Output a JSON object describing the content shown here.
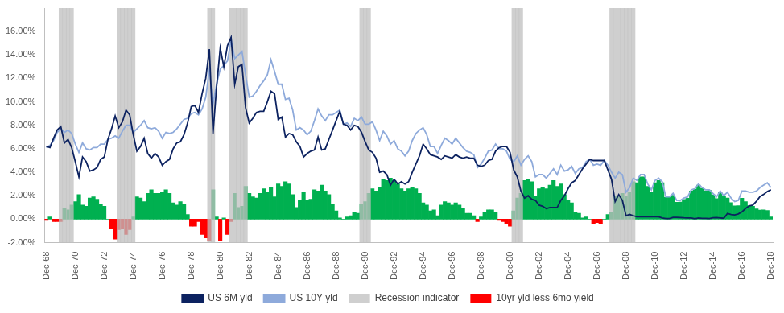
{
  "chart_data": {
    "type": "bar",
    "categories": [
      "Dec-68",
      null,
      null,
      null,
      null,
      null,
      null,
      null,
      "Dec-70",
      null,
      null,
      null,
      null,
      null,
      null,
      null,
      "Dec-72",
      null,
      null,
      null,
      null,
      null,
      null,
      null,
      "Dec-74",
      null,
      null,
      null,
      null,
      null,
      null,
      null,
      "Dec-76",
      null,
      null,
      null,
      null,
      null,
      null,
      null,
      "Dec-78",
      null,
      null,
      null,
      null,
      null,
      null,
      null,
      "Dec-80",
      null,
      null,
      null,
      null,
      null,
      null,
      null,
      "Dec-82",
      null,
      null,
      null,
      null,
      null,
      null,
      null,
      "Dec-84",
      null,
      null,
      null,
      null,
      null,
      null,
      null,
      "Dec-86",
      null,
      null,
      null,
      null,
      null,
      null,
      null,
      "Dec-88",
      null,
      null,
      null,
      null,
      null,
      null,
      null,
      "Dec-90",
      null,
      null,
      null,
      null,
      null,
      null,
      null,
      "Dec-92",
      null,
      null,
      null,
      null,
      null,
      null,
      null,
      "Dec-94",
      null,
      null,
      null,
      null,
      null,
      null,
      null,
      "Dec-96",
      null,
      null,
      null,
      null,
      null,
      null,
      null,
      "Dec-98",
      null,
      null,
      null,
      null,
      null,
      null,
      null,
      "Dec-00",
      null,
      null,
      null,
      null,
      null,
      null,
      null,
      "Dec-02",
      null,
      null,
      null,
      null,
      null,
      null,
      null,
      "Dec-04",
      null,
      null,
      null,
      null,
      null,
      null,
      null,
      "Dec-06",
      null,
      null,
      null,
      null,
      null,
      null,
      null,
      "Dec-08",
      null,
      null,
      null,
      null,
      null,
      null,
      null,
      "Dec-10",
      null,
      null,
      null,
      null,
      null,
      null,
      null,
      "Dec-12",
      null,
      null,
      null,
      null,
      null,
      null,
      null,
      "Dec-14",
      null,
      null,
      null,
      null,
      null,
      null,
      null,
      "Dec-16",
      null,
      null,
      null,
      null,
      null,
      null,
      null,
      "Dec-18"
    ],
    "series": [
      {
        "name": "10yr yld less 6mo yield",
        "type": "bar",
        "color": "#00b050",
        "values": [
          -0.1,
          0.2,
          -0.2,
          -0.2,
          -0.2,
          0.9,
          0.8,
          1.2,
          1.5,
          2.1,
          1.2,
          1.1,
          1.8,
          1.9,
          1.7,
          1.3,
          1.1,
          0.0,
          -0.8,
          -1.7,
          -0.9,
          -0.8,
          -1.3,
          -0.9,
          0.2,
          1.9,
          1.8,
          1.5,
          2.2,
          2.5,
          2.2,
          2.2,
          2.3,
          2.5,
          2.2,
          1.4,
          1.2,
          1.5,
          1.3,
          0.4,
          -0.6,
          -0.6,
          -0.2,
          -1.3,
          -1.6,
          -1.8,
          2.5,
          0.2,
          -1.8,
          0.1,
          -1.3,
          -0.2,
          2.2,
          1.0,
          1.1,
          2.8,
          2.2,
          1.9,
          1.8,
          2.2,
          2.6,
          2.3,
          2.7,
          1.9,
          3.0,
          2.8,
          3.2,
          3.0,
          2.1,
          1.0,
          1.6,
          2.3,
          1.6,
          1.7,
          2.5,
          2.4,
          2.9,
          2.4,
          2.1,
          1.3,
          0.7,
          0.1,
          0.0,
          0.2,
          0.3,
          0.6,
          0.5,
          1.3,
          1.5,
          2.2,
          2.6,
          2.4,
          2.7,
          3.4,
          3.3,
          3.5,
          3.3,
          3.0,
          2.6,
          2.4,
          2.6,
          2.7,
          2.6,
          2.2,
          1.4,
          1.2,
          0.7,
          0.8,
          0.3,
          1.2,
          1.5,
          1.4,
          1.2,
          1.4,
          1.2,
          0.9,
          0.5,
          0.5,
          0.3,
          -0.2,
          0.2,
          0.6,
          0.8,
          0.8,
          0.6,
          -0.1,
          -0.2,
          -0.4,
          -0.6,
          0.7,
          1.8,
          2.2,
          3.3,
          3.4,
          3.2,
          2.0,
          2.6,
          2.7,
          2.6,
          2.9,
          3.3,
          2.8,
          3.0,
          2.1,
          1.6,
          1.4,
          0.6,
          0.5,
          0.1,
          0.2,
          0.0,
          -0.4,
          -0.3,
          -0.4,
          0.0,
          0.4,
          0.6,
          2.0,
          1.9,
          2.2,
          2.0,
          2.3,
          3.2,
          3.1,
          3.6,
          3.6,
          2.8,
          2.3,
          3.1,
          3.3,
          3.1,
          1.85,
          1.85,
          2.05,
          1.45,
          1.46,
          1.68,
          1.79,
          2.4,
          2.56,
          2.9,
          2.63,
          2.43,
          2.45,
          2.08,
          1.76,
          2.29,
          1.92,
          1.81,
          1.41,
          1.14,
          1.15,
          1.78,
          1.49,
          1.16,
          1.1,
          0.87,
          0.77,
          0.79,
          0.74,
          0.2
        ]
      },
      {
        "name": "Recession indicator",
        "type": "bar",
        "color": "#bfbfbf",
        "values": [
          null,
          null,
          null,
          null,
          [
            -2,
            18
          ],
          [
            -2,
            18
          ],
          [
            -2,
            18
          ],
          [
            -2,
            18
          ],
          null,
          null,
          null,
          null,
          null,
          null,
          null,
          null,
          null,
          null,
          null,
          null,
          [
            -2,
            18
          ],
          [
            -2,
            18
          ],
          [
            -2,
            18
          ],
          [
            -2,
            18
          ],
          [
            -2,
            18
          ],
          null,
          null,
          null,
          null,
          null,
          null,
          null,
          null,
          null,
          null,
          null,
          null,
          null,
          null,
          null,
          null,
          null,
          null,
          null,
          null,
          [
            -2,
            18
          ],
          [
            -2,
            18
          ],
          null,
          null,
          null,
          null,
          [
            -2,
            18
          ],
          [
            -2,
            18
          ],
          [
            -2,
            18
          ],
          [
            -2,
            18
          ],
          [
            -2,
            18
          ],
          null,
          null,
          null,
          null,
          null,
          null,
          null,
          null,
          null,
          null,
          null,
          null,
          null,
          null,
          null,
          null,
          null,
          null,
          null,
          null,
          null,
          null,
          null,
          null,
          null,
          null,
          null,
          null,
          null,
          null,
          null,
          [
            -2,
            18
          ],
          [
            -2,
            18
          ],
          [
            -2,
            18
          ],
          null,
          null,
          null,
          null,
          null,
          null,
          null,
          null,
          null,
          null,
          null,
          null,
          null,
          null,
          null,
          null,
          null,
          null,
          null,
          null,
          null,
          null,
          null,
          null,
          null,
          null,
          null,
          null,
          null,
          null,
          null,
          null,
          null,
          null,
          null,
          null,
          null,
          null,
          null,
          [
            -2,
            18
          ],
          [
            -2,
            18
          ],
          [
            -2,
            18
          ],
          null,
          null,
          null,
          null,
          null,
          null,
          null,
          null,
          null,
          null,
          null,
          null,
          null,
          null,
          null,
          null,
          null,
          null,
          null,
          null,
          null,
          null,
          null,
          null,
          [
            -2,
            18
          ],
          [
            -2,
            18
          ],
          [
            -2,
            18
          ],
          [
            -2,
            18
          ],
          [
            -2,
            18
          ],
          [
            -2,
            18
          ],
          [
            -2,
            18
          ],
          null,
          null,
          null,
          null,
          null,
          null,
          null,
          null,
          null,
          null,
          null,
          null,
          null,
          null,
          null,
          null,
          null,
          null,
          null,
          null,
          null,
          null,
          null,
          null,
          null,
          null,
          null,
          null,
          null,
          null,
          null,
          null,
          null,
          null,
          null,
          null,
          null,
          null
        ]
      },
      {
        "name": "US 6M yld",
        "type": "line",
        "color": "#0c2260",
        "values": [
          6.2,
          6.1,
          6.9,
          7.6,
          7.9,
          6.5,
          6.8,
          6.1,
          4.9,
          3.6,
          5.3,
          4.9,
          4.1,
          4.2,
          4.4,
          5.1,
          5.3,
          6.8,
          7.7,
          8.8,
          7.8,
          8.3,
          9.3,
          8.9,
          7.2,
          5.8,
          6.2,
          6.9,
          5.6,
          5.2,
          5.6,
          5.3,
          4.6,
          4.9,
          5.1,
          6.0,
          6.5,
          6.6,
          7.2,
          8.2,
          9.6,
          9.7,
          9.1,
          10.7,
          12.0,
          14.5,
          7.3,
          11.3,
          14.6,
          13.0,
          14.8,
          15.5,
          11.5,
          13.0,
          13.2,
          9.5,
          8.2,
          8.6,
          9.1,
          9.2,
          9.2,
          10.0,
          10.9,
          10.7,
          8.5,
          8.7,
          7.0,
          7.3,
          7.2,
          6.6,
          6.2,
          5.3,
          5.6,
          5.8,
          5.9,
          7.0,
          5.9,
          6.0,
          6.8,
          7.6,
          8.4,
          9.2,
          8.1,
          8.0,
          7.6,
          8.0,
          7.9,
          7.4,
          6.6,
          5.9,
          5.7,
          5.2,
          4.0,
          4.1,
          3.8,
          2.9,
          3.4,
          3.0,
          3.2,
          3.0,
          3.2,
          4.0,
          4.7,
          5.4,
          6.4,
          6.0,
          5.5,
          5.4,
          5.3,
          5.1,
          5.4,
          5.3,
          5.2,
          5.5,
          5.3,
          5.2,
          5.3,
          5.2,
          5.2,
          4.6,
          4.5,
          4.6,
          5.0,
          5.1,
          5.8,
          6.1,
          6.2,
          6.2,
          5.7,
          4.2,
          3.6,
          2.4,
          1.8,
          2.0,
          1.7,
          1.6,
          1.2,
          1.1,
          0.9,
          1.0,
          1.0,
          1.0,
          1.6,
          2.0,
          2.6,
          3.1,
          3.3,
          3.8,
          4.3,
          4.7,
          5.1,
          5.0,
          5.0,
          5.0,
          5.0,
          4.2,
          3.4,
          1.5,
          2.1,
          1.6,
          0.3,
          0.4,
          0.3,
          0.2,
          0.2,
          0.2,
          0.2,
          0.2,
          0.2,
          0.2,
          0.1,
          0.05,
          0.05,
          0.15,
          0.15,
          0.14,
          0.12,
          0.11,
          0.1,
          0.04,
          0.1,
          0.07,
          0.07,
          0.05,
          0.12,
          0.14,
          0.11,
          0.08,
          0.49,
          0.39,
          0.36,
          0.45,
          0.62,
          0.91,
          1.14,
          1.2,
          1.53,
          1.93,
          2.11,
          2.36,
          2.5
        ]
      },
      {
        "name": "US 10Y yld",
        "type": "line",
        "color": "#8eaadb",
        "values": [
          6.1,
          6.3,
          6.7,
          7.4,
          7.7,
          7.4,
          7.6,
          7.3,
          6.4,
          5.7,
          6.5,
          6.0,
          5.9,
          6.1,
          6.1,
          6.4,
          6.4,
          6.8,
          6.9,
          7.1,
          6.9,
          7.5,
          8.0,
          8.0,
          7.4,
          7.7,
          8.0,
          8.4,
          7.8,
          7.7,
          7.8,
          7.5,
          6.9,
          7.4,
          7.3,
          7.4,
          7.7,
          8.1,
          8.5,
          8.6,
          9.0,
          9.1,
          8.9,
          9.4,
          10.4,
          12.7,
          9.8,
          11.5,
          12.8,
          13.1,
          13.5,
          15.3,
          13.7,
          14.0,
          14.3,
          12.3,
          10.4,
          10.5,
          10.9,
          11.4,
          11.8,
          12.3,
          13.6,
          12.6,
          11.5,
          11.5,
          10.2,
          10.3,
          9.3,
          7.6,
          7.8,
          7.6,
          7.2,
          7.5,
          8.4,
          9.4,
          8.8,
          8.4,
          8.9,
          8.9,
          9.1,
          9.3,
          8.1,
          8.2,
          7.9,
          8.6,
          8.4,
          8.7,
          8.1,
          8.1,
          8.3,
          7.6,
          6.7,
          7.5,
          7.1,
          6.4,
          6.7,
          6.0,
          5.8,
          5.4,
          5.8,
          6.7,
          7.3,
          7.6,
          7.8,
          7.2,
          6.2,
          6.2,
          5.6,
          6.3,
          6.9,
          6.7,
          6.4,
          6.9,
          6.5,
          6.1,
          5.8,
          5.7,
          5.5,
          4.4,
          4.7,
          5.2,
          5.8,
          5.9,
          6.4,
          6.0,
          6.0,
          5.8,
          5.1,
          4.9,
          5.4,
          4.6,
          5.1,
          5.4,
          4.9,
          3.6,
          3.8,
          3.8,
          3.5,
          3.9,
          4.3,
          3.8,
          4.6,
          4.1,
          4.2,
          4.5,
          3.9,
          4.3,
          4.4,
          4.9,
          5.1,
          4.6,
          4.7,
          4.6,
          5.0,
          4.6,
          4.0,
          3.5,
          4.0,
          3.8,
          2.3,
          2.7,
          3.5,
          3.3,
          3.8,
          3.8,
          3.0,
          2.5,
          3.3,
          3.5,
          3.2,
          1.9,
          1.9,
          2.2,
          1.6,
          1.6,
          1.8,
          1.9,
          2.5,
          2.6,
          3.0,
          2.7,
          2.5,
          2.5,
          2.2,
          1.9,
          2.4,
          2.0,
          2.3,
          1.8,
          1.5,
          1.6,
          2.4,
          2.4,
          2.3,
          2.3,
          2.4,
          2.7,
          2.9,
          3.1,
          2.7
        ]
      }
    ],
    "ylim": [
      -2,
      18
    ],
    "yticks": [
      {
        "value": -2,
        "label": "-2.00%"
      },
      {
        "value": 0,
        "label": "0.00%"
      },
      {
        "value": 2,
        "label": "2.00%"
      },
      {
        "value": 4,
        "label": "4.00%"
      },
      {
        "value": 6,
        "label": "6.00%"
      },
      {
        "value": 8,
        "label": "8.00%"
      },
      {
        "value": 10,
        "label": "10.00%"
      },
      {
        "value": 12,
        "label": "12.00%"
      },
      {
        "value": 14,
        "label": "14.00%"
      },
      {
        "value": 16,
        "label": "16.00%"
      }
    ],
    "grid": false,
    "legend": "bottom"
  }
}
